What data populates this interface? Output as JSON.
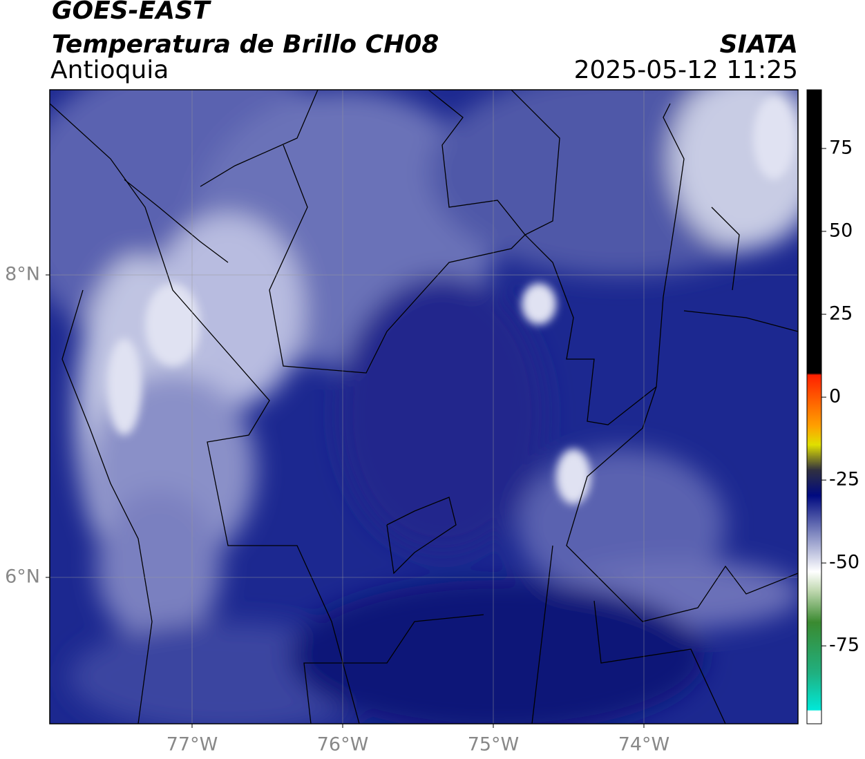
{
  "header": {
    "title": "GOES-EAST",
    "subtitle": "Temperatura de Brillo CH08",
    "region": "Antioquia",
    "source": "SIATA",
    "datetime": "2025-05-12 11:25"
  },
  "map": {
    "lonlim": [
      -77.945,
      -72.977
    ],
    "latlim": [
      5.032,
      9.224
    ],
    "lonticks": [
      {
        "value": -77,
        "label": "77°W"
      },
      {
        "value": -76,
        "label": "76°W"
      },
      {
        "value": -75,
        "label": "75°W"
      },
      {
        "value": -74,
        "label": "74°W"
      }
    ],
    "latticks": [
      {
        "value": 8,
        "label": "8°N"
      },
      {
        "value": 6,
        "label": "6°N"
      }
    ],
    "grid": true
  },
  "colorbar": {
    "lim": [
      -98.5,
      92.7
    ],
    "ticks": [
      75,
      50,
      25,
      0,
      -25,
      -50,
      -75
    ]
  }
}
